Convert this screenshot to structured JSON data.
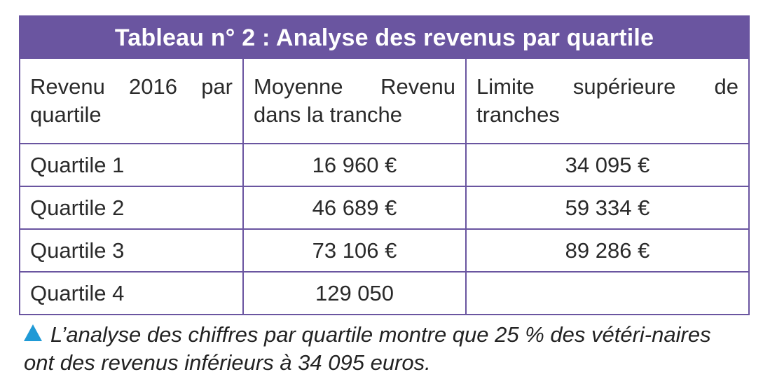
{
  "table": {
    "title": "Tableau n° 2 : Analyse des revenus par quartile",
    "headers": [
      "Revenu 2016 par quartile",
      "Moyenne Revenu dans la tranche",
      "Limite supérieure de tranches"
    ],
    "rows": [
      [
        "Quartile 1",
        "16 960 €",
        "34 095 €"
      ],
      [
        "Quartile 2",
        "46 689 €",
        "59 334 €"
      ],
      [
        "Quartile 3",
        "73 106 €",
        "89 286 €"
      ],
      [
        "Quartile 4",
        "129 050",
        ""
      ]
    ]
  },
  "caption": {
    "text": "L’analyse des chiffres par quartile montre que 25 % des vétéri-naires ont des revenus inférieurs à 34 095 euros.",
    "icon": "triangle-up-icon",
    "icon_color": "#1f9ad6"
  },
  "colors": {
    "accent": "#6a55a0"
  }
}
